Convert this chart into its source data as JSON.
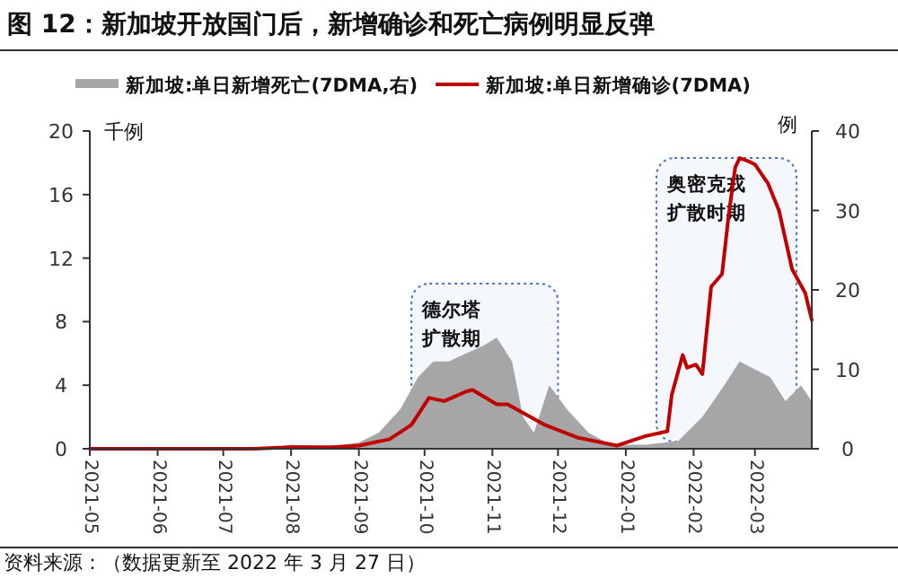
{
  "chart_data": {
    "type": "area",
    "title": "图 12：新加坡开放国门后，新增确诊和死亡病例明显反弹",
    "ylabel": "千例",
    "y2label": "例",
    "legend": "top",
    "xlim": [
      "2021-05-01",
      "2022-03-27"
    ],
    "xticks": [
      "2021-05",
      "2021-06",
      "2021-07",
      "2021-08",
      "2021-09",
      "2021-10",
      "2021-11",
      "2021-12",
      "2022-01",
      "2022-02",
      "2022-03"
    ],
    "ylim": [
      0,
      20
    ],
    "yticks": [
      0,
      4,
      8,
      12,
      16,
      20
    ],
    "y2lim": [
      0,
      40
    ],
    "y2ticks": [
      0,
      10,
      20,
      30,
      40
    ],
    "series": [
      {
        "name": "新加坡:单日新增死亡(7DMA,右)",
        "axis": "y2",
        "color": "#a6a6a6",
        "x": [
          "2021-05-01",
          "2021-07-20",
          "2021-08-01",
          "2021-08-20",
          "2021-09-01",
          "2021-09-10",
          "2021-09-20",
          "2021-09-28",
          "2021-10-05",
          "2021-10-12",
          "2021-10-20",
          "2021-10-28",
          "2021-11-03",
          "2021-11-10",
          "2021-11-15",
          "2021-11-20",
          "2021-11-27",
          "2021-12-05",
          "2021-12-15",
          "2021-12-25",
          "2022-01-10",
          "2022-01-25",
          "2022-02-05",
          "2022-02-15",
          "2022-02-22",
          "2022-03-01",
          "2022-03-08",
          "2022-03-15",
          "2022-03-22",
          "2022-03-27"
        ],
        "values": [
          0,
          0,
          0.5,
          0.3,
          0.8,
          2,
          5,
          9,
          11,
          11,
          12,
          13,
          14,
          11,
          4,
          2,
          8,
          5,
          2,
          0.5,
          0.5,
          1,
          4,
          8,
          11,
          10,
          9,
          6,
          8,
          6
        ]
      },
      {
        "name": "新加坡:单日新增确诊(7DMA)",
        "type": "line",
        "color": "#c00000",
        "x": [
          "2021-05-01",
          "2021-07-15",
          "2021-08-01",
          "2021-08-20",
          "2021-09-01",
          "2021-09-15",
          "2021-09-25",
          "2021-10-03",
          "2021-10-10",
          "2021-10-20",
          "2021-10-23",
          "2021-11-03",
          "2021-11-08",
          "2021-11-25",
          "2021-12-10",
          "2021-12-28",
          "2022-01-10",
          "2022-01-20",
          "2022-01-22",
          "2022-01-27",
          "2022-01-29",
          "2022-02-02",
          "2022-02-05",
          "2022-02-09",
          "2022-02-14",
          "2022-02-17",
          "2022-02-20",
          "2022-02-22",
          "2022-02-26",
          "2022-03-01",
          "2022-03-07",
          "2022-03-12",
          "2022-03-18",
          "2022-03-24",
          "2022-03-27"
        ],
        "values": [
          0,
          0,
          0.1,
          0.1,
          0.2,
          0.6,
          1.5,
          3.2,
          3.0,
          3.6,
          3.7,
          2.8,
          2.8,
          1.5,
          0.7,
          0.2,
          0.8,
          1.1,
          3.4,
          5.9,
          5.1,
          5.3,
          4.7,
          10.2,
          11,
          14.7,
          17.7,
          18.3,
          18.1,
          17.9,
          16.7,
          15,
          11.3,
          9.8,
          8.1
        ]
      }
    ],
    "bands": [
      {
        "axis": "x",
        "from": "2021-09-25",
        "to": "2021-12-01",
        "label": "德尔塔扩散期",
        "color": "#4472c4"
      },
      {
        "axis": "x",
        "from": "2022-01-15",
        "to": "2022-03-20",
        "label": "奥密克戎扩散时期",
        "color": "#4472c4"
      }
    ],
    "annotations": [
      "资料来源：（数据更新至 2022 年 3 月 27 日）"
    ]
  }
}
